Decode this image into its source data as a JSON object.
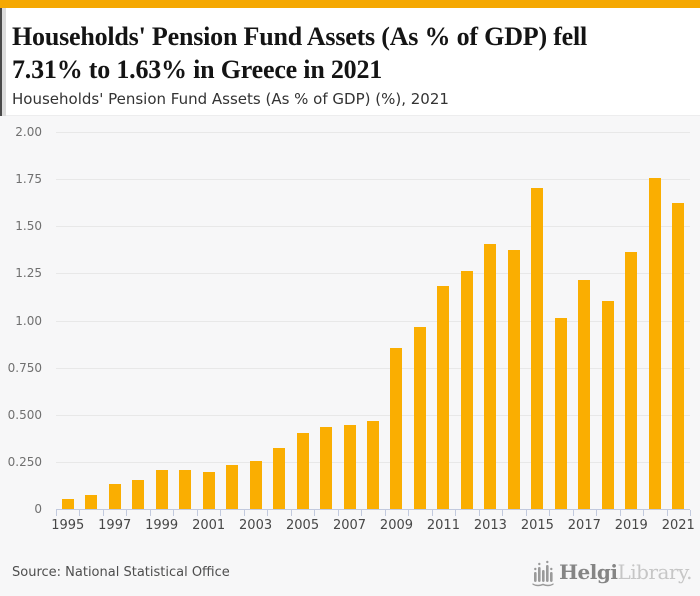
{
  "page": {
    "topbar_color": "#F5A802",
    "background": "#f7f7f8",
    "header_background": "#ffffff"
  },
  "header": {
    "title_line1": "Households' Pension Fund Assets (As % of GDP) fell",
    "title_line2": "7.31% to 1.63% in Greece in 2021",
    "subtitle": "Households' Pension Fund Assets (As % of GDP) (%), 2021"
  },
  "chart_data": {
    "type": "bar",
    "title": "Households' Pension Fund Assets (As % of GDP) (%), 2021",
    "xlabel": "",
    "ylabel": "",
    "unit": "% of GDP",
    "bar_color": "#FAAE01",
    "grid": true,
    "legend": false,
    "ylim": [
      0,
      2.0
    ],
    "yticks": [
      {
        "label": "0",
        "value": 0
      },
      {
        "label": "0.250",
        "value": 0.25
      },
      {
        "label": "0.500",
        "value": 0.5
      },
      {
        "label": "0.750",
        "value": 0.75
      },
      {
        "label": "1.00",
        "value": 1.0
      },
      {
        "label": "1.25",
        "value": 1.25
      },
      {
        "label": "1.50",
        "value": 1.5
      },
      {
        "label": "1.75",
        "value": 1.75
      },
      {
        "label": "2.00",
        "value": 2.0
      }
    ],
    "categories": [
      "1995",
      "1996",
      "1997",
      "1998",
      "1999",
      "2000",
      "2001",
      "2002",
      "2003",
      "2004",
      "2005",
      "2006",
      "2007",
      "2008",
      "2009",
      "2010",
      "2011",
      "2012",
      "2013",
      "2014",
      "2015",
      "2016",
      "2017",
      "2018",
      "2019",
      "2020",
      "2021"
    ],
    "values": [
      0.06,
      0.08,
      0.14,
      0.16,
      0.21,
      0.21,
      0.2,
      0.24,
      0.26,
      0.33,
      0.41,
      0.44,
      0.45,
      0.47,
      0.86,
      0.97,
      1.19,
      1.27,
      1.41,
      1.38,
      1.71,
      1.02,
      1.22,
      1.11,
      1.37,
      1.76,
      1.63
    ],
    "xtick_label_every": 2
  },
  "footer": {
    "source": "Source: National Statistical Office",
    "logo": {
      "bold": "Helgi",
      "light": "Library.",
      "icon": "bar-chart-logo-icon"
    }
  }
}
